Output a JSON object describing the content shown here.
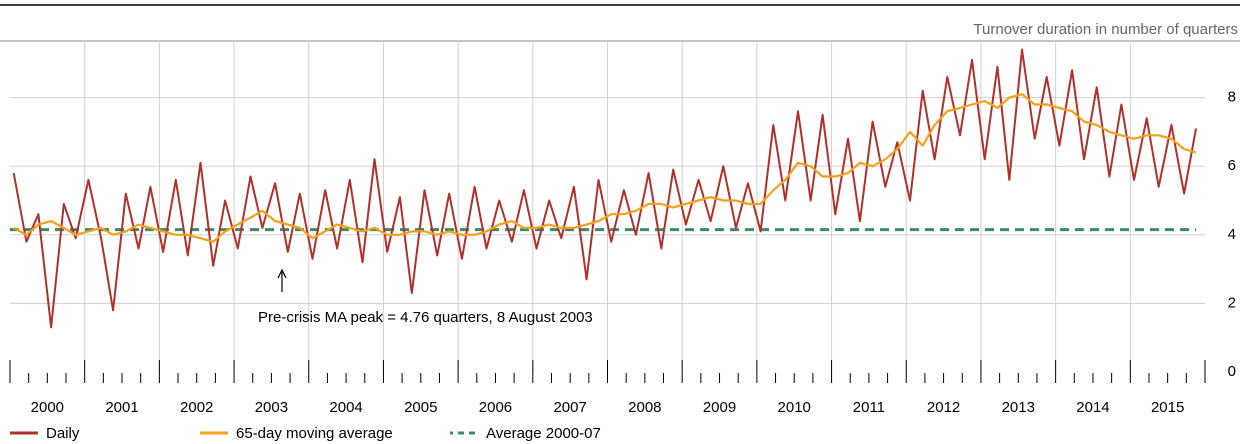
{
  "chart_data": {
    "type": "line",
    "subtitle": "Turnover duration in number of quarters",
    "annotation": "Pre-crisis MA peak = 4.76 quarters, 8 August 2003",
    "x": [
      2000.05,
      2000.22,
      2000.38,
      2000.55,
      2000.72,
      2000.88,
      2001.05,
      2001.22,
      2001.38,
      2001.55,
      2001.72,
      2001.88,
      2002.05,
      2002.22,
      2002.38,
      2002.55,
      2002.72,
      2002.88,
      2003.05,
      2003.22,
      2003.38,
      2003.55,
      2003.72,
      2003.88,
      2004.05,
      2004.22,
      2004.38,
      2004.55,
      2004.72,
      2004.88,
      2005.05,
      2005.22,
      2005.38,
      2005.55,
      2005.72,
      2005.88,
      2006.05,
      2006.22,
      2006.38,
      2006.55,
      2006.72,
      2006.88,
      2007.05,
      2007.22,
      2007.38,
      2007.55,
      2007.72,
      2007.88,
      2008.05,
      2008.22,
      2008.38,
      2008.55,
      2008.72,
      2008.88,
      2009.05,
      2009.22,
      2009.38,
      2009.55,
      2009.72,
      2009.88,
      2010.05,
      2010.22,
      2010.38,
      2010.55,
      2010.72,
      2010.88,
      2011.05,
      2011.22,
      2011.38,
      2011.55,
      2011.72,
      2011.88,
      2012.05,
      2012.22,
      2012.38,
      2012.55,
      2012.72,
      2012.88,
      2013.05,
      2013.22,
      2013.38,
      2013.55,
      2013.72,
      2013.88,
      2014.05,
      2014.22,
      2014.38,
      2014.55,
      2014.72,
      2014.88,
      2015.05,
      2015.22,
      2015.38,
      2015.55,
      2015.72,
      2015.88
    ],
    "series": [
      {
        "name": "Daily",
        "color": "#b0302a",
        "values": [
          5.8,
          3.8,
          4.6,
          1.3,
          4.9,
          3.9,
          5.6,
          3.9,
          1.8,
          5.2,
          3.6,
          5.4,
          3.5,
          5.6,
          3.4,
          6.1,
          3.1,
          5.0,
          3.6,
          5.7,
          4.2,
          5.5,
          3.5,
          5.2,
          3.3,
          5.3,
          3.6,
          5.6,
          3.2,
          6.2,
          3.5,
          5.1,
          2.3,
          5.3,
          3.4,
          5.2,
          3.3,
          5.4,
          3.6,
          5.0,
          3.8,
          5.3,
          3.6,
          5.0,
          3.9,
          5.4,
          2.7,
          5.6,
          3.8,
          5.3,
          4.0,
          5.8,
          3.6,
          5.9,
          4.3,
          5.6,
          4.4,
          6.0,
          4.2,
          5.5,
          4.1,
          7.2,
          5.0,
          7.6,
          5.0,
          7.5,
          4.6,
          6.8,
          4.4,
          7.3,
          5.4,
          6.7,
          5.0,
          8.2,
          6.2,
          8.6,
          6.9,
          9.1,
          6.2,
          8.9,
          5.6,
          9.4,
          6.8,
          8.6,
          6.6,
          8.8,
          6.2,
          8.3,
          5.7,
          7.8,
          5.6,
          7.4,
          5.4,
          7.2,
          5.2,
          7.1
        ]
      },
      {
        "name": "65-day moving average",
        "color": "#f5a01a",
        "values": [
          4.2,
          4.0,
          4.3,
          4.4,
          4.2,
          4.0,
          4.1,
          4.2,
          4.0,
          4.1,
          4.3,
          4.2,
          4.1,
          4.0,
          4.0,
          3.9,
          3.8,
          4.1,
          4.3,
          4.5,
          4.7,
          4.4,
          4.3,
          4.2,
          3.9,
          4.1,
          4.3,
          4.2,
          4.1,
          4.2,
          4.0,
          4.0,
          4.1,
          4.1,
          4.0,
          4.1,
          4.0,
          4.0,
          4.1,
          4.3,
          4.4,
          4.2,
          4.2,
          4.3,
          4.2,
          4.2,
          4.3,
          4.4,
          4.6,
          4.6,
          4.7,
          4.9,
          4.9,
          4.8,
          4.9,
          5.0,
          5.1,
          5.0,
          5.0,
          4.9,
          4.9,
          5.3,
          5.6,
          6.1,
          6.0,
          5.7,
          5.7,
          5.8,
          6.1,
          6.0,
          6.2,
          6.5,
          7.0,
          6.6,
          7.2,
          7.6,
          7.7,
          7.8,
          7.9,
          7.7,
          8.0,
          8.1,
          7.8,
          7.8,
          7.7,
          7.6,
          7.3,
          7.2,
          7.0,
          6.9,
          6.8,
          6.9,
          6.9,
          6.8,
          6.5,
          6.4
        ]
      }
    ],
    "reference": {
      "name": "Average 2000-07",
      "color": "#3d8a66",
      "value": 4.15
    },
    "xlim": [
      2000,
      2016
    ],
    "xticks": [
      2000,
      2001,
      2002,
      2003,
      2004,
      2005,
      2006,
      2007,
      2008,
      2009,
      2010,
      2011,
      2012,
      2013,
      2014,
      2015,
      2016
    ],
    "ylim": [
      0,
      9.65
    ],
    "yticks": [
      0,
      2,
      4,
      6,
      8
    ],
    "grid": true
  }
}
